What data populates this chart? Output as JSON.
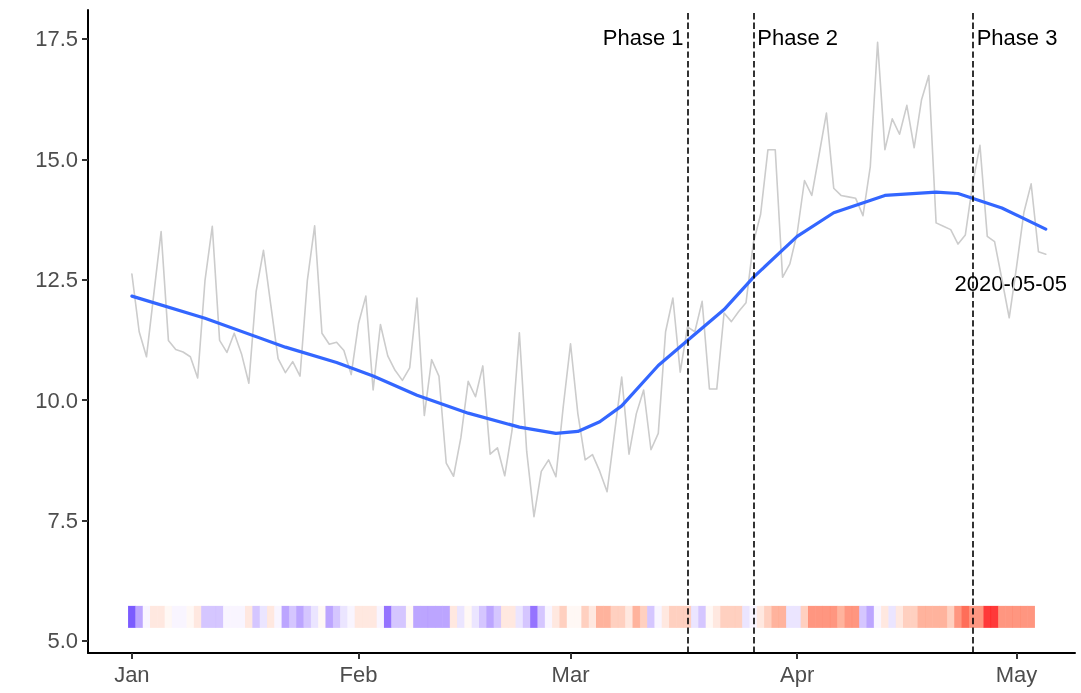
{
  "chart_data": {
    "type": "line",
    "xlim": [
      "2019-12-26",
      "2020-05-09"
    ],
    "xticks": [
      {
        "value": "2020-01-01",
        "label": "Jan"
      },
      {
        "value": "2020-02-01",
        "label": "Feb"
      },
      {
        "value": "2020-03-01",
        "label": "Mar"
      },
      {
        "value": "2020-04-01",
        "label": "Apr"
      },
      {
        "value": "2020-05-01",
        "label": "May"
      }
    ],
    "ylim": [
      4.75,
      18.1
    ],
    "yticks": [
      {
        "value": 5,
        "label": "5.0"
      },
      7.5,
      {
        "value": 10,
        "label": "10.0"
      },
      12.5,
      {
        "value": 15,
        "label": "15.0"
      },
      17.5
    ],
    "grid": false,
    "ref_lines": [
      {
        "axis": "x",
        "value": "2020-03-17",
        "label": "Phase 1",
        "line_style": "dashed",
        "color": "#000000"
      },
      {
        "axis": "x",
        "value": "2020-03-26",
        "label": "Phase 2",
        "line_style": "dashed",
        "color": "#000000"
      },
      {
        "axis": "x",
        "value": "2020-04-25",
        "label": "Phase 3",
        "line_style": "dashed",
        "color": "#000000"
      }
    ],
    "annotations": [
      "2020-05-05"
    ],
    "series": [
      {
        "color": "#cccccc",
        "x": [
          "2020-01-01",
          "2020-01-02",
          "2020-01-03",
          "2020-01-04",
          "2020-01-05",
          "2020-01-06",
          "2020-01-07",
          "2020-01-08",
          "2020-01-09",
          "2020-01-10",
          "2020-01-11",
          "2020-01-12",
          "2020-01-13",
          "2020-01-14",
          "2020-01-15",
          "2020-01-16",
          "2020-01-17",
          "2020-01-18",
          "2020-01-19",
          "2020-01-20",
          "2020-01-21",
          "2020-01-22",
          "2020-01-23",
          "2020-01-24",
          "2020-01-25",
          "2020-01-26",
          "2020-01-27",
          "2020-01-28",
          "2020-01-29",
          "2020-01-30",
          "2020-01-31",
          "2020-02-01",
          "2020-02-02",
          "2020-02-03",
          "2020-02-04",
          "2020-02-05",
          "2020-02-06",
          "2020-02-07",
          "2020-02-08",
          "2020-02-09",
          "2020-02-10",
          "2020-02-11",
          "2020-02-12",
          "2020-02-13",
          "2020-02-14",
          "2020-02-15",
          "2020-02-16",
          "2020-02-17",
          "2020-02-18",
          "2020-02-19",
          "2020-02-20",
          "2020-02-21",
          "2020-02-22",
          "2020-02-23",
          "2020-02-24",
          "2020-02-25",
          "2020-02-26",
          "2020-02-27",
          "2020-02-28",
          "2020-02-29",
          "2020-03-01",
          "2020-03-02",
          "2020-03-03",
          "2020-03-04",
          "2020-03-05",
          "2020-03-06",
          "2020-03-07",
          "2020-03-08",
          "2020-03-09",
          "2020-03-10",
          "2020-03-11",
          "2020-03-12",
          "2020-03-13",
          "2020-03-14",
          "2020-03-15",
          "2020-03-16",
          "2020-03-17",
          "2020-03-18",
          "2020-03-19",
          "2020-03-20",
          "2020-03-21",
          "2020-03-22",
          "2020-03-23",
          "2020-03-24",
          "2020-03-25",
          "2020-03-26",
          "2020-03-27",
          "2020-03-28",
          "2020-03-29",
          "2020-03-30",
          "2020-03-31",
          "2020-04-01",
          "2020-04-02",
          "2020-04-03",
          "2020-04-04",
          "2020-04-05",
          "2020-04-06",
          "2020-04-07",
          "2020-04-08",
          "2020-04-09",
          "2020-04-10",
          "2020-04-11",
          "2020-04-12",
          "2020-04-13",
          "2020-04-14",
          "2020-04-15",
          "2020-04-16",
          "2020-04-17",
          "2020-04-18",
          "2020-04-19",
          "2020-04-20",
          "2020-04-21",
          "2020-04-22",
          "2020-04-23",
          "2020-04-24",
          "2020-04-25",
          "2020-04-26",
          "2020-04-27",
          "2020-04-28",
          "2020-04-29",
          "2020-04-30",
          "2020-05-01",
          "2020-05-02",
          "2020-05-03",
          "2020-05-04",
          "2020-05-05"
        ],
        "values": [
          12.62,
          11.42,
          10.9,
          12.2,
          13.5,
          11.24,
          11.05,
          11.0,
          10.9,
          10.46,
          12.48,
          13.61,
          11.24,
          10.99,
          11.39,
          10.96,
          10.35,
          12.26,
          13.11,
          11.98,
          10.86,
          10.57,
          10.8,
          10.5,
          12.48,
          13.62,
          11.39,
          11.16,
          11.2,
          11.03,
          10.53,
          11.59,
          12.16,
          10.21,
          11.57,
          10.92,
          10.62,
          10.41,
          10.67,
          12.12,
          9.68,
          10.84,
          10.5,
          8.69,
          8.42,
          9.22,
          10.39,
          10.07,
          10.71,
          8.88,
          9.01,
          8.43,
          9.37,
          11.4,
          8.94,
          7.58,
          8.52,
          8.76,
          8.41,
          9.86,
          11.17,
          9.72,
          8.76,
          8.87,
          8.52,
          8.1,
          9.3,
          10.48,
          8.88,
          9.72,
          10.21,
          8.97,
          9.31,
          11.42,
          12.12,
          10.58,
          11.52,
          11.42,
          12.05,
          10.23,
          10.23,
          11.81,
          11.63,
          11.84,
          12.02,
          13.26,
          13.86,
          15.2,
          15.2,
          12.55,
          12.83,
          13.47,
          14.56,
          14.25,
          15.1,
          15.96,
          14.4,
          14.25,
          14.22,
          14.19,
          13.83,
          14.85,
          17.43,
          15.2,
          15.84,
          15.52,
          16.12,
          15.24,
          16.23,
          16.74,
          13.68,
          13.61,
          13.54,
          13.24,
          13.43,
          14.49,
          15.29,
          13.4,
          13.29,
          12.51,
          11.71,
          12.76,
          13.89,
          14.49,
          13.08,
          13.03
        ]
      },
      {
        "color": "#3366ff",
        "x": [
          "2020-01-01",
          "2020-01-11",
          "2020-01-22",
          "2020-01-29",
          "2020-02-03",
          "2020-02-09",
          "2020-02-16",
          "2020-02-23",
          "2020-02-28",
          "2020-03-02",
          "2020-03-05",
          "2020-03-08",
          "2020-03-13",
          "2020-03-17",
          "2020-03-22",
          "2020-03-26",
          "2020-04-01",
          "2020-04-06",
          "2020-04-13",
          "2020-04-20",
          "2020-04-23",
          "2020-04-29",
          "2020-05-05"
        ],
        "values": [
          12.16,
          11.7,
          11.1,
          10.78,
          10.5,
          10.1,
          9.73,
          9.44,
          9.31,
          9.35,
          9.55,
          9.88,
          10.72,
          11.24,
          11.88,
          12.55,
          13.4,
          13.89,
          14.25,
          14.32,
          14.29,
          13.99,
          13.55
        ]
      },
      {
        "type": "scatter",
        "marker": "square",
        "x": [
          "2020-01-01",
          "2020-01-02",
          "2020-01-03",
          "2020-01-04",
          "2020-01-05",
          "2020-01-06",
          "2020-01-07",
          "2020-01-08",
          "2020-01-09",
          "2020-01-10",
          "2020-01-11",
          "2020-01-12",
          "2020-01-13",
          "2020-01-14",
          "2020-01-15",
          "2020-01-16",
          "2020-01-17",
          "2020-01-18",
          "2020-01-19",
          "2020-01-20",
          "2020-01-21",
          "2020-01-22",
          "2020-01-23",
          "2020-01-24",
          "2020-01-25",
          "2020-01-26",
          "2020-01-27",
          "2020-01-28",
          "2020-01-29",
          "2020-01-30",
          "2020-01-31",
          "2020-02-01",
          "2020-02-02",
          "2020-02-03",
          "2020-02-04",
          "2020-02-05",
          "2020-02-06",
          "2020-02-07",
          "2020-02-08",
          "2020-02-09",
          "2020-02-10",
          "2020-02-11",
          "2020-02-12",
          "2020-02-13",
          "2020-02-14",
          "2020-02-15",
          "2020-02-16",
          "2020-02-17",
          "2020-02-18",
          "2020-02-19",
          "2020-02-20",
          "2020-02-21",
          "2020-02-22",
          "2020-02-23",
          "2020-02-24",
          "2020-02-25",
          "2020-02-26",
          "2020-02-27",
          "2020-02-28",
          "2020-02-29",
          "2020-03-01",
          "2020-03-02",
          "2020-03-03",
          "2020-03-04",
          "2020-03-05",
          "2020-03-06",
          "2020-03-07",
          "2020-03-08",
          "2020-03-09",
          "2020-03-10",
          "2020-03-11",
          "2020-03-12",
          "2020-03-13",
          "2020-03-14",
          "2020-03-15",
          "2020-03-16",
          "2020-03-17",
          "2020-03-18",
          "2020-03-19",
          "2020-03-20",
          "2020-03-21",
          "2020-03-22",
          "2020-03-23",
          "2020-03-24",
          "2020-03-25",
          "2020-03-26",
          "2020-03-27",
          "2020-03-28",
          "2020-03-29",
          "2020-03-30",
          "2020-03-31",
          "2020-04-01",
          "2020-04-02",
          "2020-04-03",
          "2020-04-04",
          "2020-04-05",
          "2020-04-06",
          "2020-04-07",
          "2020-04-08",
          "2020-04-09",
          "2020-04-10",
          "2020-04-11",
          "2020-04-12",
          "2020-04-13",
          "2020-04-14",
          "2020-04-15",
          "2020-04-16",
          "2020-04-17",
          "2020-04-18",
          "2020-04-19",
          "2020-04-20",
          "2020-04-21",
          "2020-04-22",
          "2020-04-23",
          "2020-04-24",
          "2020-04-25",
          "2020-04-26",
          "2020-04-27",
          "2020-04-28",
          "2020-04-29",
          "2020-04-30",
          "2020-05-01",
          "2020-05-02",
          "2020-05-03"
        ],
        "values": [
          5.5,
          5.5,
          5.5,
          5.5,
          5.5,
          5.5,
          5.5,
          5.5,
          5.5,
          5.5,
          5.5,
          5.5,
          5.5,
          5.5,
          5.5,
          5.5,
          5.5,
          5.5,
          5.5,
          5.5,
          5.5,
          5.5,
          5.5,
          5.5,
          5.5,
          5.5,
          5.5,
          5.5,
          5.5,
          5.5,
          5.5,
          5.5,
          5.5,
          5.5,
          5.5,
          5.5,
          5.5,
          5.5,
          5.5,
          5.5,
          5.5,
          5.5,
          5.5,
          5.5,
          5.5,
          5.5,
          5.5,
          5.5,
          5.5,
          5.5,
          5.5,
          5.5,
          5.5,
          5.5,
          5.5,
          5.5,
          5.5,
          5.5,
          5.5,
          5.5,
          5.5,
          5.5,
          5.5,
          5.5,
          5.5,
          5.5,
          5.5,
          5.5,
          5.5,
          5.5,
          5.5,
          5.5,
          5.5,
          5.5,
          5.5,
          5.5,
          5.5,
          5.5,
          5.5,
          5.5,
          5.5,
          5.5,
          5.5,
          5.5,
          5.5,
          5.5,
          5.5,
          5.5,
          5.5,
          5.5,
          5.5,
          5.5,
          5.5,
          5.5,
          5.5,
          5.5,
          5.5,
          5.5,
          5.5,
          5.5,
          5.5,
          5.5,
          5.5,
          5.5,
          5.5,
          5.5,
          5.5,
          5.5,
          5.5,
          5.5,
          5.5,
          5.5,
          5.5,
          5.5,
          5.5,
          5.5,
          5.5,
          5.5,
          5.5,
          5.5,
          5.5,
          5.5,
          5.5,
          5.5
        ],
        "colors": [
          "#5a32ff",
          "#ab8eff",
          "#f7f3ff",
          "#ffe2d8",
          "#ffe2d8",
          "#fff6f3",
          "#f7f3ff",
          "#f7f3ff",
          "#fff6f3",
          "#ffe2d8",
          "#cbb8ff",
          "#cbb8ff",
          "#cbb8ff",
          "#f7f3ff",
          "#f7f3ff",
          "#f7f3ff",
          "#ffe2d8",
          "#cbb8ff",
          "#e6deff",
          "#ffe2d8",
          "#f7f3ff",
          "#ab8eff",
          "#cbb8ff",
          "#ab8eff",
          "#cbb8ff",
          "#e6deff",
          "#fff6f3",
          "#ab8eff",
          "#cbb8ff",
          "#e6deff",
          "#f7f3ff",
          "#ffe2d8",
          "#ffe2d8",
          "#ffe2d8",
          "#f7f3ff",
          "#7a50ff",
          "#cbb8ff",
          "#cbb8ff",
          "#fff6f3",
          "#ab8eff",
          "#ab8eff",
          "#ab8eff",
          "#ab8eff",
          "#ab8eff",
          "#ffe2d8",
          "#e6deff",
          "#fff6f3",
          "#e6deff",
          "#cbb8ff",
          "#ab8eff",
          "#cbb8ff",
          "#ffe2d8",
          "#ffe2d8",
          "#e6deff",
          "#cbb8ff",
          "#7a50ff",
          "#cbb8ff",
          "#f7f3ff",
          "#ffe2d8",
          "#ffc4b0",
          "#fff6f3",
          "#fff6f3",
          "#ffc4b0",
          "#ffe2d8",
          "#ffa085",
          "#ffa085",
          "#ffc4b0",
          "#ffc4b0",
          "#ffe2d8",
          "#ffa085",
          "#ffc4b0",
          "#cbb8ff",
          "#f7f3ff",
          "#ffe2d8",
          "#ffc4b0",
          "#ffc4b0",
          "#ffc4b0",
          "#e6deff",
          "#cbb8ff",
          "#fff6f3",
          "#ffe2d8",
          "#ffc4b0",
          "#ffc4b0",
          "#ffc4b0",
          "#e6deff",
          "#f7f3ff",
          "#ffe2d8",
          "#ffc4b0",
          "#ffa085",
          "#ffa085",
          "#e6deff",
          "#e6deff",
          "#ffc4b0",
          "#ff7c60",
          "#ff7c60",
          "#ff7c60",
          "#ff7c60",
          "#ffa085",
          "#ff7c60",
          "#ff7c60",
          "#cbb8ff",
          "#ab8eff",
          "#f7f3ff",
          "#ffe2d8",
          "#e6deff",
          "#ffe2d8",
          "#ffc4b0",
          "#ffc4b0",
          "#ffa085",
          "#ffa085",
          "#ffa085",
          "#ffa085",
          "#ffc4b0",
          "#ff7c60",
          "#ff4a30",
          "#ff7c60",
          "#ff7c60",
          "#ff0808",
          "#ff0808",
          "#ff7c60",
          "#ff7c60",
          "#ff7c60",
          "#ff7c60",
          "#ff7c60"
        ]
      }
    ]
  }
}
